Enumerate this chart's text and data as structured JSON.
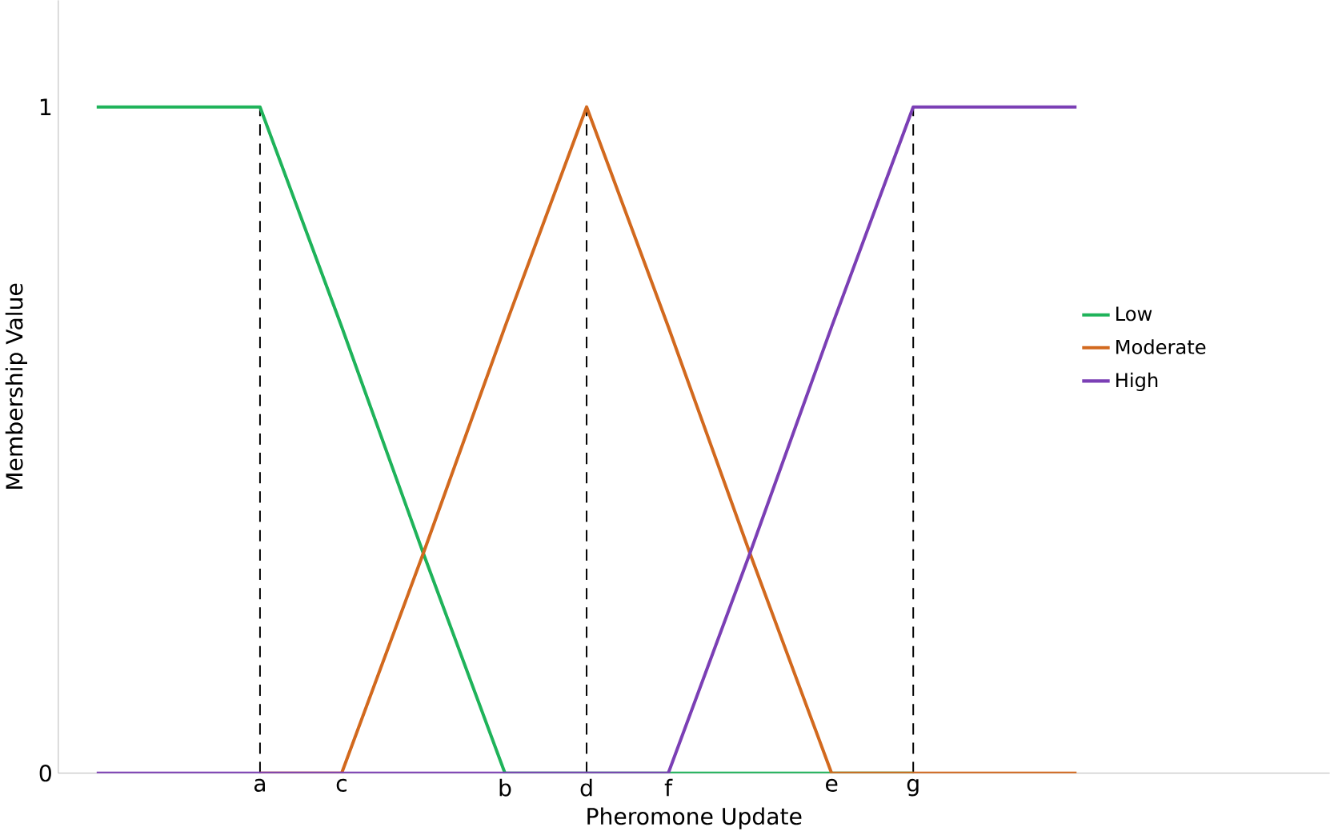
{
  "chart_data": {
    "type": "line",
    "xlabel": "Pheromone Update",
    "ylabel": "Membership Value",
    "categories": [
      null,
      null,
      "a",
      "c",
      null,
      "b",
      "d",
      "f",
      null,
      "e",
      "g",
      null,
      null
    ],
    "ylim": [
      0,
      1.16
    ],
    "yticks": [
      0,
      1
    ],
    "series": [
      {
        "name": "Low",
        "color": "#1fb35a",
        "values": [
          1,
          1,
          1,
          0.67,
          0.33,
          0,
          0,
          0,
          0,
          0,
          0,
          null,
          null
        ]
      },
      {
        "name": "Moderate",
        "color": "#d2691e",
        "values": [
          null,
          null,
          0,
          0,
          0.33,
          0.67,
          1,
          0.67,
          0.33,
          0,
          0,
          0,
          0
        ]
      },
      {
        "name": "High",
        "color": "#7b3fb5",
        "values": [
          0,
          0,
          0,
          0,
          0,
          0,
          0,
          0,
          0.33,
          0.67,
          1,
          1,
          1
        ]
      }
    ],
    "ref_lines": [
      {
        "axis": "x",
        "value": "a",
        "line_style": "dashed",
        "color": "#000000"
      },
      {
        "axis": "x",
        "value": "d",
        "line_style": "dashed",
        "color": "#000000"
      },
      {
        "axis": "x",
        "value": "g",
        "line_style": "dashed",
        "color": "#000000"
      }
    ],
    "legend": "right",
    "grid": false,
    "marker": "none",
    "line_style": "solid"
  }
}
